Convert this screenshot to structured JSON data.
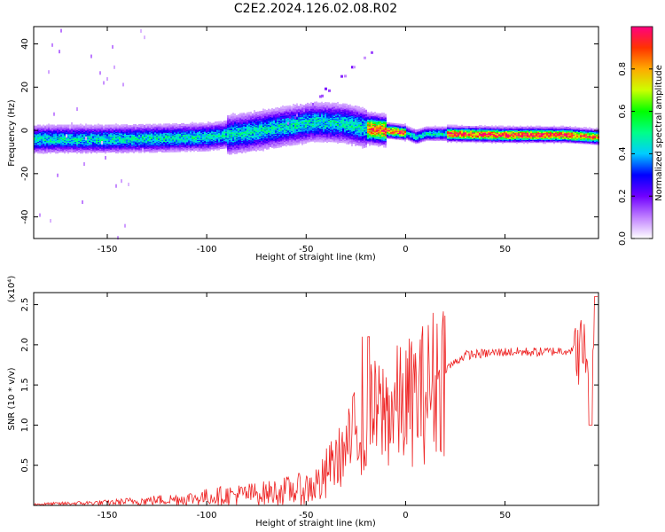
{
  "figure": {
    "title": "C2E2.2024.126.02.08.R02"
  },
  "chart_data": [
    {
      "type": "heatmap",
      "title": "C2E2.2024.126.02.08.R02",
      "xlabel": "Height of straight line (km)",
      "ylabel": "Frequency (Hz)",
      "xlim": [
        -187,
        97
      ],
      "ylim": [
        -50,
        48
      ],
      "xticks": [
        -150,
        -100,
        -50,
        0,
        50
      ],
      "yticks": [
        -40,
        -20,
        0,
        20,
        40
      ],
      "colorbar": {
        "label": "Normalized spectral amplitude",
        "range": [
          0.0,
          1.0
        ],
        "ticks": [
          0.0,
          0.2,
          0.4,
          0.6,
          0.8
        ],
        "tick_labels": [
          "0.0",
          "0.2",
          "0.4",
          "0.6",
          "0.8"
        ],
        "colors": [
          "#ffffff",
          "#c080ff",
          "#7000ff",
          "#0000ff",
          "#00ccff",
          "#00ff88",
          "#00ff00",
          "#ccff00",
          "#ffaa00",
          "#ff3300",
          "#ff0080"
        ]
      },
      "band_centerline": [
        {
          "x": -187,
          "y": -4
        },
        {
          "x": -150,
          "y": -4
        },
        {
          "x": -120,
          "y": -3.5
        },
        {
          "x": -100,
          "y": -3
        },
        {
          "x": -80,
          "y": -1
        },
        {
          "x": -60,
          "y": 2
        },
        {
          "x": -45,
          "y": 4
        },
        {
          "x": -30,
          "y": 3
        },
        {
          "x": -20,
          "y": 1
        },
        {
          "x": -10,
          "y": 0
        },
        {
          "x": 0,
          "y": -1
        },
        {
          "x": 5,
          "y": -3
        },
        {
          "x": 10,
          "y": -1.5
        },
        {
          "x": 20,
          "y": -1.5
        },
        {
          "x": 50,
          "y": -2
        },
        {
          "x": 80,
          "y": -2
        },
        {
          "x": 97,
          "y": -3
        }
      ]
    },
    {
      "type": "line",
      "xlabel": "Height of straight line (km)",
      "ylabel": "SNR (10 * v/v)",
      "y_multiplier": "(x10⁴)",
      "xlim": [
        -187,
        97
      ],
      "ylim": [
        0,
        2.65
      ],
      "xticks": [
        -150,
        -100,
        -50,
        0,
        50
      ],
      "yticks": [
        0.5,
        1.0,
        1.5,
        2.0,
        2.5
      ],
      "ytick_labels": [
        "0.5",
        "1.0",
        "1.5",
        "2.0",
        "2.5"
      ],
      "color": "#ee2222",
      "envelope": [
        {
          "x": -187,
          "y": 0.02
        },
        {
          "x": -150,
          "y": 0.05
        },
        {
          "x": -110,
          "y": 0.12
        },
        {
          "x": -90,
          "y": 0.18
        },
        {
          "x": -70,
          "y": 0.22
        },
        {
          "x": -50,
          "y": 0.3
        },
        {
          "x": -40,
          "y": 0.45
        },
        {
          "x": -30,
          "y": 0.7
        },
        {
          "x": -25,
          "y": 0.95
        },
        {
          "x": -20,
          "y": 1.1
        },
        {
          "x": -10,
          "y": 1.2
        },
        {
          "x": 0,
          "y": 1.3
        },
        {
          "x": 10,
          "y": 1.45
        },
        {
          "x": 20,
          "y": 1.75
        },
        {
          "x": 30,
          "y": 1.93
        },
        {
          "x": 50,
          "y": 1.97
        },
        {
          "x": 70,
          "y": 1.97
        },
        {
          "x": 85,
          "y": 2.0
        },
        {
          "x": 97,
          "y": 1.9
        }
      ]
    }
  ]
}
